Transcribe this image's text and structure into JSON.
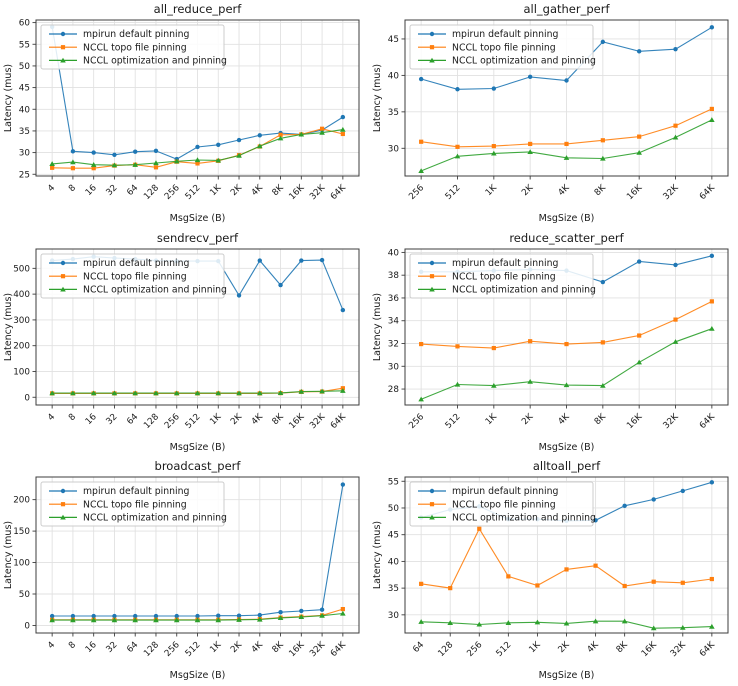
{
  "figure": {
    "background": "#ffffff",
    "text_color": "#1a1a1a",
    "spine_color": "#3c3c3c",
    "grid_color": "#e1e1e1",
    "legend_border": "#cccccc"
  },
  "chart_data": [
    {
      "type": "line",
      "title": "all_reduce_perf",
      "xlabel": "MsgSize (B)",
      "ylabel": "Latency (mus)",
      "categories": [
        "4",
        "8",
        "16",
        "32",
        "64",
        "128",
        "256",
        "512",
        "1K",
        "2K",
        "4K",
        "8K",
        "16K",
        "32K",
        "64K"
      ],
      "ylim": [
        24.6,
        60.6
      ],
      "yticks": [
        25,
        30,
        35,
        40,
        45,
        50,
        55,
        60
      ],
      "grid": true,
      "legend_position": "upper left",
      "series": [
        {
          "name": "mpirun default pinning",
          "color": "#1f77b4",
          "marker": "circle",
          "values": [
            59.0,
            30.3,
            30.0,
            29.5,
            30.2,
            30.4,
            28.5,
            31.3,
            31.8,
            32.9,
            34.0,
            34.5,
            34.2,
            35.2,
            38.2
          ]
        },
        {
          "name": "NCCL topo file pinning",
          "color": "#ff7f0e",
          "marker": "square",
          "values": [
            26.5,
            26.4,
            26.4,
            27.0,
            27.2,
            26.6,
            27.9,
            27.5,
            28.1,
            29.4,
            31.4,
            34.1,
            34.2,
            35.5,
            34.3
          ]
        },
        {
          "name": "NCCL optimization and pinning",
          "color": "#2ca02c",
          "marker": "triangle",
          "values": [
            27.4,
            27.8,
            27.2,
            27.1,
            27.2,
            27.6,
            28.0,
            28.3,
            28.2,
            29.3,
            31.5,
            33.3,
            34.2,
            34.6,
            35.3
          ]
        }
      ]
    },
    {
      "type": "line",
      "title": "all_gather_perf",
      "xlabel": "MsgSize (B)",
      "ylabel": "Latency (mus)",
      "categories": [
        "256",
        "512",
        "1K",
        "2K",
        "4K",
        "8K",
        "16K",
        "32K",
        "64K"
      ],
      "ylim": [
        26.2,
        47.6
      ],
      "yticks": [
        30,
        35,
        40,
        45
      ],
      "grid": true,
      "legend_position": "upper left",
      "series": [
        {
          "name": "mpirun default pinning",
          "color": "#1f77b4",
          "marker": "circle",
          "values": [
            39.5,
            38.1,
            38.2,
            39.8,
            39.3,
            44.6,
            43.3,
            43.6,
            46.6
          ]
        },
        {
          "name": "NCCL topo file pinning",
          "color": "#ff7f0e",
          "marker": "square",
          "values": [
            30.9,
            30.2,
            30.3,
            30.6,
            30.6,
            31.1,
            31.6,
            33.1,
            35.4
          ]
        },
        {
          "name": "NCCL optimization and pinning",
          "color": "#2ca02c",
          "marker": "triangle",
          "values": [
            26.9,
            28.9,
            29.3,
            29.5,
            28.7,
            28.6,
            29.4,
            31.5,
            33.9
          ]
        }
      ]
    },
    {
      "type": "line",
      "title": "sendrecv_perf",
      "xlabel": "MsgSize (B)",
      "ylabel": "Latency (mus)",
      "categories": [
        "4",
        "8",
        "16",
        "32",
        "64",
        "128",
        "256",
        "512",
        "1K",
        "2K",
        "4K",
        "8K",
        "16K",
        "32K",
        "64K"
      ],
      "ylim": [
        -30,
        575
      ],
      "yticks": [
        0,
        100,
        200,
        300,
        400,
        500
      ],
      "grid": true,
      "legend_position": "upper left",
      "series": [
        {
          "name": "mpirun default pinning",
          "color": "#1f77b4",
          "marker": "circle",
          "values": [
            530,
            536,
            545,
            540,
            536,
            530,
            528,
            528,
            528,
            395,
            530,
            435,
            530,
            532,
            338
          ]
        },
        {
          "name": "NCCL topo file pinning",
          "color": "#ff7f0e",
          "marker": "square",
          "values": [
            15,
            15,
            15,
            15,
            15,
            15,
            15,
            15,
            15,
            15,
            15,
            16,
            21,
            22,
            35
          ]
        },
        {
          "name": "NCCL optimization and pinning",
          "color": "#2ca02c",
          "marker": "triangle",
          "values": [
            16,
            16,
            16,
            16,
            16,
            16,
            16,
            16,
            16,
            16,
            16,
            17,
            22,
            23,
            25
          ]
        }
      ]
    },
    {
      "type": "line",
      "title": "reduce_scatter_perf",
      "xlabel": "MsgSize (B)",
      "ylabel": "Latency (mus)",
      "categories": [
        "256",
        "512",
        "1K",
        "2K",
        "4K",
        "8K",
        "16K",
        "32K",
        "64K"
      ],
      "ylim": [
        26.6,
        40.3
      ],
      "yticks": [
        28,
        30,
        32,
        34,
        36,
        38,
        40
      ],
      "grid": true,
      "legend_position": "upper left",
      "series": [
        {
          "name": "mpirun default pinning",
          "color": "#1f77b4",
          "marker": "circle",
          "values": [
            38.3,
            38.3,
            38.4,
            38.5,
            38.4,
            37.4,
            39.2,
            38.9,
            39.7
          ]
        },
        {
          "name": "NCCL topo file pinning",
          "color": "#ff7f0e",
          "marker": "square",
          "values": [
            31.95,
            31.75,
            31.6,
            32.2,
            31.95,
            32.1,
            32.7,
            34.1,
            35.7
          ]
        },
        {
          "name": "NCCL optimization and pinning",
          "color": "#2ca02c",
          "marker": "triangle",
          "values": [
            27.1,
            28.4,
            28.3,
            28.65,
            28.35,
            28.3,
            30.35,
            32.15,
            33.3
          ]
        }
      ]
    },
    {
      "type": "line",
      "title": "broadcast_perf",
      "xlabel": "MsgSize (B)",
      "ylabel": "Latency (mus)",
      "categories": [
        "4",
        "8",
        "16",
        "32",
        "64",
        "128",
        "256",
        "512",
        "1K",
        "2K",
        "4K",
        "8K",
        "16K",
        "32K",
        "64K"
      ],
      "ylim": [
        -12,
        236
      ],
      "yticks": [
        0,
        50,
        100,
        150,
        200
      ],
      "grid": true,
      "legend_position": "upper left",
      "series": [
        {
          "name": "mpirun default pinning",
          "color": "#1f77b4",
          "marker": "circle",
          "values": [
            15,
            15,
            15,
            15,
            15,
            15,
            15,
            15,
            15.5,
            15.5,
            16.5,
            21,
            23,
            25,
            224
          ]
        },
        {
          "name": "NCCL topo file pinning",
          "color": "#ff7f0e",
          "marker": "square",
          "values": [
            9,
            9,
            9,
            9,
            9,
            9,
            9,
            9,
            9,
            9.5,
            10,
            12.5,
            14,
            16,
            26
          ]
        },
        {
          "name": "NCCL optimization and pinning",
          "color": "#2ca02c",
          "marker": "triangle",
          "values": [
            8.5,
            8.5,
            8.5,
            8.5,
            8.5,
            8.5,
            8.5,
            8.5,
            8.5,
            9,
            9.5,
            12,
            13.5,
            15.5,
            19
          ]
        }
      ]
    },
    {
      "type": "line",
      "title": "alltoall_perf",
      "xlabel": "MsgSize (B)",
      "ylabel": "Latency (mus)",
      "categories": [
        "64",
        "128",
        "256",
        "512",
        "1K",
        "2K",
        "4K",
        "8K",
        "16K",
        "32K",
        "64K"
      ],
      "ylim": [
        26.6,
        55.8
      ],
      "yticks": [
        30,
        35,
        40,
        45,
        50,
        55
      ],
      "grid": true,
      "legend_position": "upper left",
      "series": [
        {
          "name": "mpirun default pinning",
          "color": "#1f77b4",
          "marker": "circle",
          "values": [
            48.2,
            49.7,
            50.3,
            47.9,
            47.9,
            47.6,
            47.7,
            50.4,
            51.6,
            53.2,
            54.8
          ]
        },
        {
          "name": "NCCL topo file pinning",
          "color": "#ff7f0e",
          "marker": "square",
          "values": [
            35.8,
            35.0,
            46.1,
            37.2,
            35.5,
            38.5,
            39.2,
            35.4,
            36.2,
            36.0,
            36.7
          ]
        },
        {
          "name": "NCCL optimization and pinning",
          "color": "#2ca02c",
          "marker": "triangle",
          "values": [
            28.7,
            28.5,
            28.2,
            28.5,
            28.6,
            28.4,
            28.8,
            28.8,
            27.5,
            27.6,
            27.8
          ]
        }
      ]
    }
  ]
}
